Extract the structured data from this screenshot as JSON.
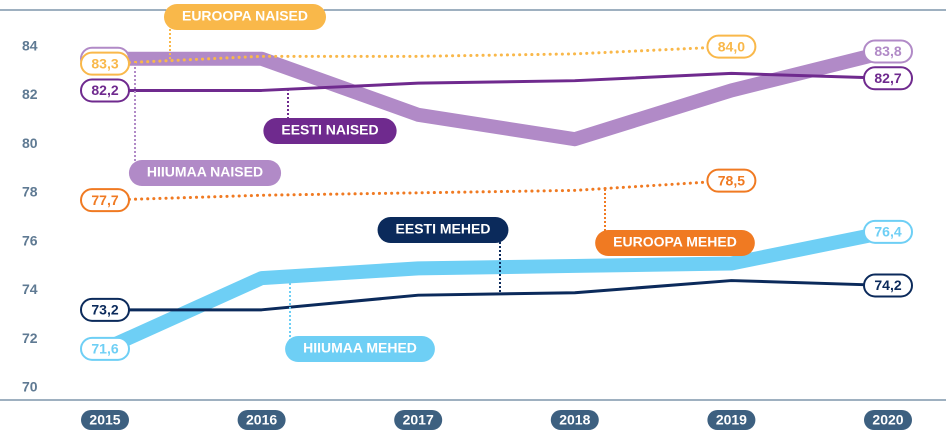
{
  "chart_data": {
    "type": "line",
    "categories": [
      "2015",
      "2016",
      "2017",
      "2018",
      "2019",
      "2020"
    ],
    "ylim": [
      69.5,
      85.5
    ],
    "yticks": [
      70,
      72,
      74,
      76,
      78,
      80,
      82,
      84
    ],
    "series": [
      {
        "name": "HIIUMAA NAISED",
        "color": "#b18ac7",
        "values": [
          83.5,
          83.5,
          81.2,
          80.2,
          82.2,
          83.8
        ],
        "value_labels": [
          "83,5",
          null,
          null,
          null,
          null,
          "83,8"
        ]
      },
      {
        "name": "HIIUMAA MEHED",
        "color": "#6ecff5",
        "values": [
          71.6,
          74.5,
          74.9,
          75.0,
          75.1,
          76.4
        ],
        "value_labels": [
          "71,6",
          null,
          null,
          null,
          null,
          "76,4"
        ]
      },
      {
        "name": "EUROOPA NAISED",
        "color": "#f9b84a",
        "dashed": true,
        "values": [
          83.3,
          83.6,
          83.6,
          83.7,
          84.0,
          null
        ],
        "value_labels": [
          "83,3",
          null,
          null,
          null,
          "84,0",
          null
        ]
      },
      {
        "name": "EESTI NAISED",
        "color": "#6f2a8e",
        "values": [
          82.2,
          82.2,
          82.5,
          82.6,
          82.9,
          82.7
        ],
        "value_labels": [
          "82,2",
          null,
          null,
          null,
          null,
          "82,7"
        ]
      },
      {
        "name": "EUROOPA MEHED",
        "color": "#f07a22",
        "dashed": true,
        "values": [
          77.7,
          77.9,
          78.0,
          78.1,
          78.5,
          null
        ],
        "value_labels": [
          "77,7",
          null,
          null,
          null,
          "78,5",
          null
        ]
      },
      {
        "name": "EESTI MEHED",
        "color": "#0b2a5b",
        "values": [
          73.2,
          73.2,
          73.8,
          73.9,
          74.4,
          74.2
        ],
        "value_labels": [
          "73,2",
          null,
          null,
          null,
          null,
          "74,2"
        ]
      }
    ]
  }
}
